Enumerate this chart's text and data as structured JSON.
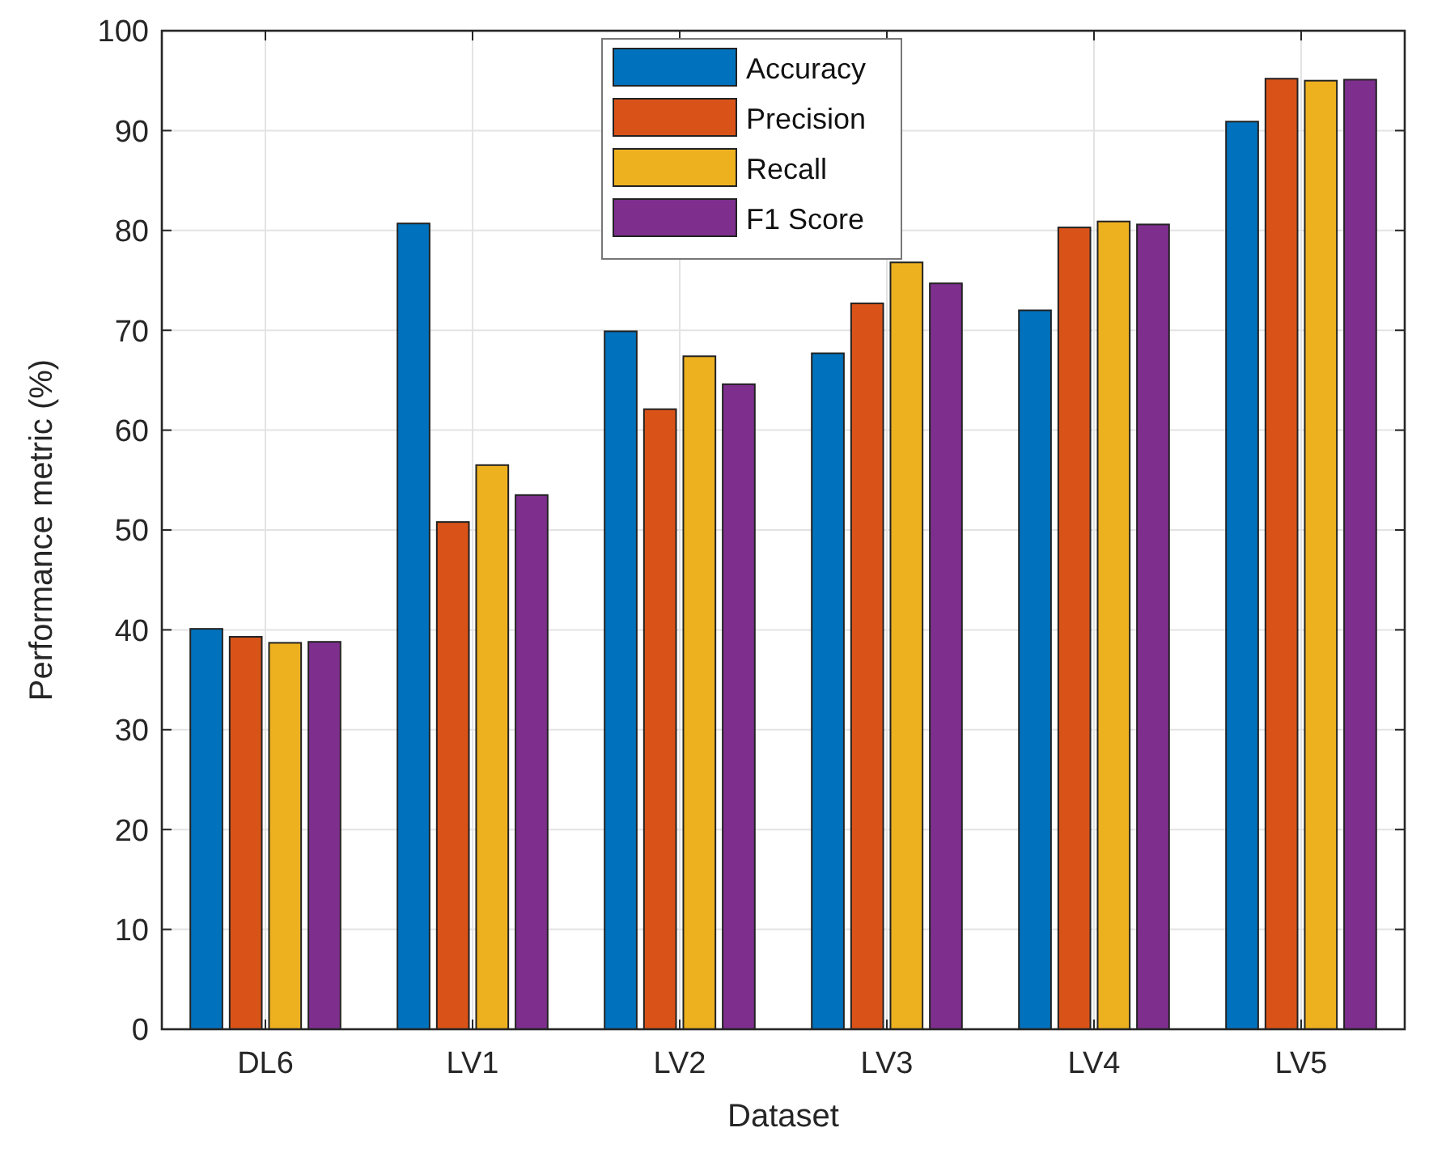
{
  "chart_data": {
    "type": "bar",
    "xlabel": "Dataset",
    "ylabel": "Performance metric (%)",
    "categories": [
      "DL6",
      "LV1",
      "LV2",
      "LV3",
      "LV4",
      "LV5"
    ],
    "series": [
      {
        "name": "Accuracy",
        "color": "#0072bd",
        "values": [
          40.1,
          80.7,
          69.9,
          67.7,
          72.0,
          90.9
        ]
      },
      {
        "name": "Precision",
        "color": "#d95319",
        "values": [
          39.3,
          50.8,
          62.1,
          72.7,
          80.3,
          95.2
        ]
      },
      {
        "name": "Recall",
        "color": "#edb120",
        "values": [
          38.7,
          56.5,
          67.4,
          76.8,
          80.9,
          95.0
        ]
      },
      {
        "name": "F1 Score",
        "color": "#7e2f8e",
        "values": [
          38.8,
          53.5,
          64.6,
          74.7,
          80.6,
          95.1
        ]
      }
    ],
    "ylim": [
      0,
      100
    ],
    "yticks": [
      0,
      10,
      20,
      30,
      40,
      50,
      60,
      70,
      80,
      90,
      100
    ],
    "grid": true,
    "legend": "top"
  }
}
